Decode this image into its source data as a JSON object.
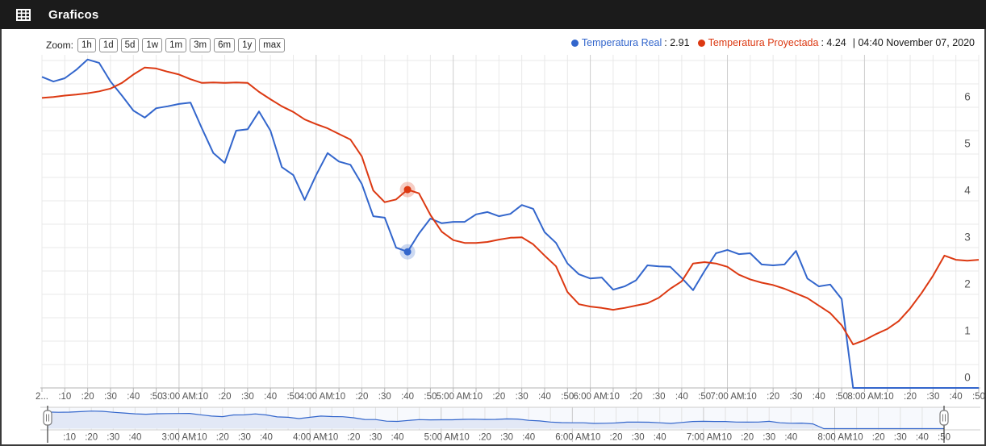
{
  "header": {
    "title": "Graficos"
  },
  "toolbar": {
    "zoom_label": "Zoom:",
    "buttons": [
      "1h",
      "1d",
      "5d",
      "1w",
      "1m",
      "3m",
      "6m",
      "1y",
      "max"
    ]
  },
  "legend": {
    "series": [
      {
        "label": "Temperatura Real",
        "sep": ":",
        "value": "2.91",
        "color": "#3366cc"
      },
      {
        "label": "Temperatura Proyectada",
        "sep": ":",
        "value": "4.24",
        "color": "#dc3912"
      }
    ],
    "separator": "|",
    "timestamp": "04:40 November 07, 2020"
  },
  "chart_data": {
    "type": "line",
    "title": "",
    "xlabel": "",
    "ylabel": "",
    "x_start": "2:00 AM",
    "x_end": "8:50 AM",
    "interval_minutes": 5,
    "ylim": [
      0,
      7
    ],
    "y_ticks": [
      0,
      1,
      2,
      3,
      4,
      5,
      6
    ],
    "grid": true,
    "legend_position": "top-right",
    "highlight": {
      "time": "04:40",
      "index": 32,
      "real": 2.91,
      "proyectada": 4.24
    },
    "series": [
      {
        "name": "Temperatura Real",
        "color": "#3366cc",
        "values": [
          6.65,
          6.55,
          6.62,
          6.8,
          7.02,
          6.95,
          6.55,
          6.25,
          5.93,
          5.78,
          5.98,
          6.02,
          6.07,
          6.1,
          5.55,
          5.02,
          4.81,
          5.5,
          5.53,
          5.91,
          5.5,
          4.72,
          4.55,
          4.02,
          4.55,
          5.02,
          4.84,
          4.77,
          4.36,
          3.67,
          3.64,
          3.0,
          2.91,
          3.3,
          3.62,
          3.52,
          3.55,
          3.55,
          3.71,
          3.76,
          3.67,
          3.72,
          3.91,
          3.83,
          3.33,
          3.1,
          2.66,
          2.43,
          2.34,
          2.36,
          2.1,
          2.17,
          2.3,
          2.62,
          2.6,
          2.59,
          2.35,
          2.09,
          2.5,
          2.88,
          2.95,
          2.86,
          2.88,
          2.64,
          2.62,
          2.64,
          2.93,
          2.34,
          2.17,
          2.21,
          1.9,
          0,
          0,
          0,
          0,
          0,
          0,
          0,
          0,
          0,
          0,
          0,
          0
        ]
      },
      {
        "name": "Temperatura Proyectada",
        "color": "#dc3912",
        "values": [
          6.2,
          6.22,
          6.25,
          6.27,
          6.3,
          6.34,
          6.4,
          6.52,
          6.7,
          6.85,
          6.83,
          6.76,
          6.7,
          6.6,
          6.52,
          6.53,
          6.52,
          6.53,
          6.52,
          6.33,
          6.17,
          6.02,
          5.9,
          5.74,
          5.64,
          5.55,
          5.43,
          5.31,
          4.95,
          4.22,
          3.97,
          4.03,
          4.24,
          4.16,
          3.7,
          3.34,
          3.16,
          3.1,
          3.1,
          3.12,
          3.17,
          3.21,
          3.22,
          3.07,
          2.83,
          2.6,
          2.05,
          1.79,
          1.74,
          1.71,
          1.67,
          1.71,
          1.76,
          1.81,
          1.93,
          2.12,
          2.28,
          2.66,
          2.69,
          2.66,
          2.59,
          2.42,
          2.32,
          2.25,
          2.2,
          2.12,
          2.02,
          1.92,
          1.76,
          1.6,
          1.34,
          0.93,
          1.02,
          1.15,
          1.26,
          1.43,
          1.7,
          2.03,
          2.4,
          2.83,
          2.74,
          2.72,
          2.74
        ]
      }
    ],
    "x_labels_main": [
      "2...",
      ":10",
      ":20",
      ":30",
      ":40",
      ":50",
      "3:00 AM",
      ":10",
      ":20",
      ":30",
      ":40",
      ":50",
      "4:00 AM",
      ":10",
      ":20",
      ":30",
      ":40",
      ":50",
      "5:00 AM",
      ":10",
      ":20",
      ":30",
      ":40",
      ":50",
      "6:00 AM",
      ":10",
      ":20",
      ":30",
      ":40",
      ":50",
      "7:00 AM",
      ":10",
      ":20",
      ":30",
      ":40",
      ":50",
      "8:00 AM",
      ":10",
      ":20",
      ":30",
      ":40",
      ":50"
    ],
    "x_labels_navigator": [
      [
        10,
        ":10"
      ],
      [
        20,
        ":20"
      ],
      [
        30,
        ":30"
      ],
      [
        40,
        ":40"
      ],
      [
        60,
        "3:00 AM"
      ],
      [
        70,
        ":10"
      ],
      [
        80,
        ":20"
      ],
      [
        90,
        ":30"
      ],
      [
        100,
        ":40"
      ],
      [
        120,
        "4:00 AM"
      ],
      [
        130,
        ":10"
      ],
      [
        140,
        ":20"
      ],
      [
        150,
        ":30"
      ],
      [
        160,
        ":40"
      ],
      [
        180,
        "5:00 AM"
      ],
      [
        190,
        ":10"
      ],
      [
        200,
        ":20"
      ],
      [
        210,
        ":30"
      ],
      [
        220,
        ":40"
      ],
      [
        240,
        "6:00 AM"
      ],
      [
        250,
        ":10"
      ],
      [
        260,
        ":20"
      ],
      [
        270,
        ":30"
      ],
      [
        280,
        ":40"
      ],
      [
        300,
        "7:00 AM"
      ],
      [
        310,
        ":10"
      ],
      [
        320,
        ":20"
      ],
      [
        330,
        ":30"
      ],
      [
        340,
        ":40"
      ],
      [
        360,
        "8:00 AM"
      ],
      [
        370,
        ":10"
      ],
      [
        380,
        ":20"
      ],
      [
        390,
        ":30"
      ],
      [
        400,
        ":40"
      ],
      [
        410,
        ":50"
      ]
    ]
  }
}
